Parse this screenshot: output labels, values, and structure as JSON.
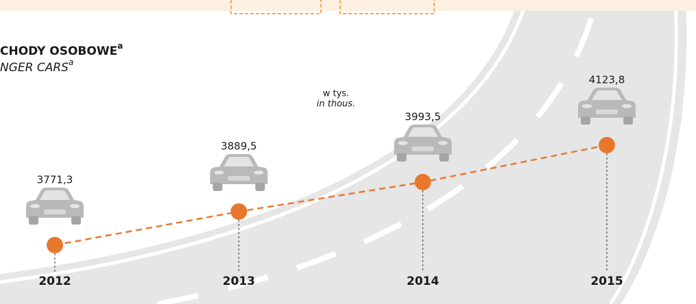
{
  "chart_data": {
    "type": "line",
    "title": "CHODY OSOBOWE",
    "title_superscript": "a",
    "subtitle": "NGER CARS",
    "subtitle_superscript": "a",
    "unit": "w tys.",
    "unit_en": "in thous.",
    "categories": [
      "2012",
      "2013",
      "2014",
      "2015"
    ],
    "values": [
      3771.3,
      3889.5,
      3993.5,
      4123.8
    ],
    "value_labels": [
      "3771,3",
      "3889,5",
      "3993,5",
      "4123,8"
    ],
    "color": "#e8772e",
    "ylim": [
      3700,
      4200
    ]
  }
}
